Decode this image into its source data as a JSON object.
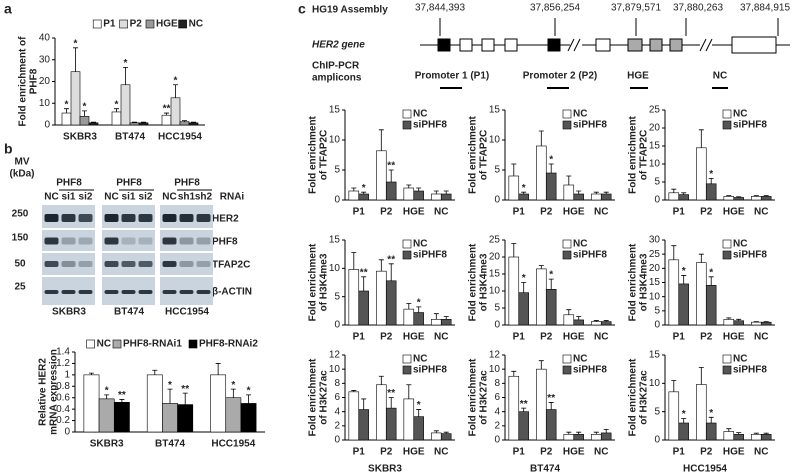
{
  "panel_labels": [
    "a",
    "b",
    "c"
  ],
  "blot": {
    "markers_title": [
      "MV",
      "(kDa)"
    ],
    "markers": [
      "250",
      "150",
      "50",
      "25"
    ],
    "groups": [
      "PHF8",
      "PHF8",
      "PHF8"
    ],
    "lanes": [
      [
        "NC",
        "si1",
        "si2"
      ],
      [
        "NC",
        "si1",
        "si2"
      ],
      [
        "NC",
        "sh1",
        "sh2"
      ]
    ],
    "treatment": "RNAi",
    "proteins": [
      "HER2",
      "PHF8",
      "TFAP2C",
      "β-ACTIN"
    ],
    "cell_lines": [
      "SKBR3",
      "BT474",
      "HCC1954"
    ]
  },
  "gene_map": {
    "assembly": "HG19 Assembly",
    "gene": "HER2 gene",
    "amplicons_label": [
      "ChIP-PCR",
      "amplicons"
    ],
    "coordinates": [
      "37,844,393",
      "37,856,254",
      "37,879,571",
      "37,880,263",
      "37,884,915"
    ],
    "amplicons": [
      "Promoter 1 (P1)",
      "Promoter 2 (P2)",
      "HGE",
      "NC"
    ]
  },
  "chart_data": [
    {
      "type": "bar",
      "ylabel": [
        "Fold enrichment of",
        "PHF8"
      ],
      "categories": [
        "SKBR3",
        "BT474",
        "HCC1954"
      ],
      "ylim": [
        0,
        40
      ],
      "yticks": [
        0,
        10,
        20,
        30,
        40
      ],
      "legend": "top",
      "series": [
        {
          "name": "P1",
          "color": "#ffffff",
          "values": [
            5.5,
            6,
            4.5
          ],
          "errors": [
            2,
            1.5,
            1
          ],
          "significance": [
            "*",
            "*",
            "**"
          ]
        },
        {
          "name": "P2",
          "color": "#dddddd",
          "values": [
            24.5,
            18.5,
            12.5
          ],
          "errors": [
            11,
            8,
            6
          ],
          "significance": [
            "*",
            "*",
            "*"
          ]
        },
        {
          "name": "HGE",
          "color": "#999999",
          "values": [
            4,
            1,
            1.5
          ],
          "errors": [
            2.5,
            0.3,
            0.5
          ],
          "significance": [
            "*",
            null,
            null
          ]
        },
        {
          "name": "NC",
          "color": "#222222",
          "values": [
            1,
            1,
            1
          ],
          "errors": [
            0.3,
            0.3,
            0.3
          ],
          "significance": [
            null,
            null,
            null
          ]
        }
      ]
    },
    {
      "type": "bar",
      "ylabel": [
        "Relative HER2",
        "mRNA expression"
      ],
      "categories": [
        "SKBR3",
        "BT474",
        "HCC1954"
      ],
      "ylim": [
        0,
        1.4
      ],
      "yticks": [
        0,
        0.2,
        0.4,
        0.6,
        0.8,
        1,
        1.2,
        1.4
      ],
      "legend": "top",
      "series": [
        {
          "name": "NC",
          "color": "#ffffff",
          "values": [
            1,
            1,
            1
          ],
          "errors": [
            0.03,
            0.08,
            0.2
          ],
          "significance": [
            null,
            null,
            null
          ]
        },
        {
          "name": "PHF8-RNAi1",
          "color": "#aaaaaa",
          "values": [
            0.58,
            0.5,
            0.6
          ],
          "errors": [
            0.07,
            0.25,
            0.15
          ],
          "significance": [
            "*",
            "*",
            "*"
          ]
        },
        {
          "name": "PHF8-RNAi2",
          "color": "#000000",
          "values": [
            0.52,
            0.48,
            0.5
          ],
          "errors": [
            0.05,
            0.2,
            0.15
          ],
          "significance": [
            "**",
            "**",
            "*"
          ]
        }
      ]
    },
    {
      "type": "bar",
      "ylabel": [
        "Fold enrichment",
        "of TFAP2C"
      ],
      "categories": [
        "P1",
        "P2",
        "HGE",
        "NC"
      ],
      "ylim": [
        0,
        15
      ],
      "yticks": [
        0,
        5,
        10,
        15
      ],
      "legend": "upper right",
      "series": [
        {
          "name": "NC",
          "color": "#ffffff",
          "values": [
            1.5,
            8.2,
            2,
            1
          ],
          "errors": [
            0.5,
            3.5,
            0.5,
            0.5
          ],
          "significance": [
            null,
            null,
            null,
            null
          ]
        },
        {
          "name": "siPHF8",
          "color": "#555555",
          "values": [
            1,
            3,
            1.5,
            1
          ],
          "errors": [
            0.3,
            2,
            0.5,
            0.5
          ],
          "significance": [
            "*",
            "**",
            null,
            null
          ]
        }
      ]
    },
    {
      "type": "bar",
      "ylabel": [
        "Fold enrichment",
        "of TFAP2C"
      ],
      "categories": [
        "P1",
        "P2",
        "HGE",
        "NC"
      ],
      "ylim": [
        0,
        15
      ],
      "yticks": [
        0,
        5,
        10,
        15
      ],
      "legend": "upper right",
      "series": [
        {
          "name": "NC",
          "color": "#ffffff",
          "values": [
            4,
            9,
            2.5,
            1
          ],
          "errors": [
            2,
            2.5,
            1.5,
            0.3
          ],
          "significance": [
            null,
            null,
            null,
            null
          ]
        },
        {
          "name": "siPHF8",
          "color": "#555555",
          "values": [
            1,
            4.5,
            1,
            1
          ],
          "errors": [
            0.3,
            1.5,
            0.5,
            0.3
          ],
          "significance": [
            "*",
            "*",
            null,
            null
          ]
        }
      ]
    },
    {
      "type": "bar",
      "ylabel": [
        "Fold enrichment",
        "of TFAP2C"
      ],
      "categories": [
        "P1",
        "P2",
        "HGE",
        "NC"
      ],
      "ylim": [
        0,
        25
      ],
      "yticks": [
        0,
        5,
        10,
        15,
        20,
        25
      ],
      "legend": "upper right",
      "series": [
        {
          "name": "NC",
          "color": "#ffffff",
          "values": [
            2,
            14.5,
            1,
            1
          ],
          "errors": [
            1,
            5,
            0.2,
            0.2
          ],
          "significance": [
            null,
            null,
            null,
            null
          ]
        },
        {
          "name": "siPHF8",
          "color": "#555555",
          "values": [
            1.5,
            4.5,
            0.7,
            1
          ],
          "errors": [
            0.5,
            1.5,
            0.2,
            0.2
          ],
          "significance": [
            null,
            "*",
            null,
            null
          ]
        }
      ]
    },
    {
      "type": "bar",
      "ylabel": [
        "Fold enrichment",
        "of H3K4me3"
      ],
      "categories": [
        "P1",
        "P2",
        "HGE",
        "NC"
      ],
      "ylim": [
        0,
        15
      ],
      "yticks": [
        0,
        5,
        10,
        15
      ],
      "legend": "upper right",
      "series": [
        {
          "name": "NC",
          "color": "#ffffff",
          "values": [
            9.8,
            9.5,
            2.8,
            1
          ],
          "errors": [
            3,
            2,
            1,
            1
          ],
          "significance": [
            null,
            null,
            null,
            null
          ]
        },
        {
          "name": "siPHF8",
          "color": "#555555",
          "values": [
            6,
            7.8,
            2.2,
            1
          ],
          "errors": [
            2.5,
            3,
            1,
            0.5
          ],
          "significance": [
            "**",
            "**",
            "*",
            null
          ]
        }
      ]
    },
    {
      "type": "bar",
      "ylabel": [
        "Fold enrichment",
        "of H3K4me3"
      ],
      "categories": [
        "P1",
        "P2",
        "HGE",
        "NC"
      ],
      "ylim": [
        0,
        25
      ],
      "yticks": [
        0,
        5,
        10,
        15,
        20,
        25
      ],
      "legend": "upper right",
      "series": [
        {
          "name": "NC",
          "color": "#ffffff",
          "values": [
            20,
            16.5,
            3,
            1
          ],
          "errors": [
            4,
            1,
            1.5,
            0.3
          ],
          "significance": [
            null,
            null,
            null,
            null
          ]
        },
        {
          "name": "siPHF8",
          "color": "#555555",
          "values": [
            9.5,
            10.5,
            1.5,
            1
          ],
          "errors": [
            3,
            3,
            1,
            0.3
          ],
          "significance": [
            "*",
            "*",
            null,
            null
          ]
        }
      ]
    },
    {
      "type": "bar",
      "ylabel": [
        "Fold enrichment",
        "of H3K4me3"
      ],
      "categories": [
        "P1",
        "P2",
        "HGE",
        "NC"
      ],
      "ylim": [
        0,
        30
      ],
      "yticks": [
        0,
        5,
        10,
        15,
        20,
        25,
        30
      ],
      "legend": "upper right",
      "series": [
        {
          "name": "NC",
          "color": "#ffffff",
          "values": [
            23,
            22,
            2,
            1
          ],
          "errors": [
            5,
            3,
            0.5,
            0.2
          ],
          "significance": [
            null,
            null,
            null,
            null
          ]
        },
        {
          "name": "siPHF8",
          "color": "#555555",
          "values": [
            14.5,
            14,
            1.5,
            1
          ],
          "errors": [
            3,
            3,
            0.5,
            0.2
          ],
          "significance": [
            "*",
            "*",
            null,
            null
          ]
        }
      ]
    },
    {
      "type": "bar",
      "ylabel": [
        "Fold enrichment",
        "of H3K27ac"
      ],
      "categories": [
        "P1",
        "P2",
        "HGE",
        "NC"
      ],
      "xlabel": "SKBR3",
      "ylim": [
        0,
        12
      ],
      "yticks": [
        0,
        2,
        4,
        6,
        8,
        10,
        12
      ],
      "legend": "upper right",
      "series": [
        {
          "name": "NC",
          "color": "#ffffff",
          "values": [
            6.8,
            7.8,
            5.8,
            1
          ],
          "errors": [
            0.2,
            1.2,
            2,
            0.3
          ],
          "significance": [
            null,
            null,
            null,
            null
          ]
        },
        {
          "name": "siPHF8",
          "color": "#555555",
          "values": [
            4.3,
            4.5,
            3.3,
            0.9
          ],
          "errors": [
            1.5,
            1.5,
            1,
            0.2
          ],
          "significance": [
            null,
            "**",
            "*",
            null
          ]
        }
      ]
    },
    {
      "type": "bar",
      "ylabel": [
        "Fold enrichment",
        "of H3K27ac"
      ],
      "categories": [
        "P1",
        "P2",
        "HGE",
        "NC"
      ],
      "xlabel": "BT474",
      "ylim": [
        0,
        12
      ],
      "yticks": [
        0,
        2,
        4,
        6,
        8,
        10,
        12
      ],
      "legend": "upper right",
      "series": [
        {
          "name": "NC",
          "color": "#ffffff",
          "values": [
            9,
            10,
            0.8,
            0.8
          ],
          "errors": [
            0.7,
            1.2,
            0.3,
            0.3
          ],
          "significance": [
            null,
            null,
            null,
            null
          ]
        },
        {
          "name": "siPHF8",
          "color": "#555555",
          "values": [
            4,
            4.3,
            0.8,
            1
          ],
          "errors": [
            0.5,
            1,
            0.3,
            0.5
          ],
          "significance": [
            "**",
            "**",
            null,
            null
          ]
        }
      ]
    },
    {
      "type": "bar",
      "ylabel": [
        "Fold enrichment",
        "of H3K27ac"
      ],
      "categories": [
        "P1",
        "P2",
        "HGE",
        "NC"
      ],
      "xlabel": "HCC1954",
      "ylim": [
        0,
        15
      ],
      "yticks": [
        0,
        5,
        10,
        15
      ],
      "legend": "upper right",
      "series": [
        {
          "name": "NC",
          "color": "#ffffff",
          "values": [
            8.5,
            9.8,
            1.5,
            1
          ],
          "errors": [
            2,
            3,
            0.5,
            0.2
          ],
          "significance": [
            null,
            null,
            null,
            null
          ]
        },
        {
          "name": "siPHF8",
          "color": "#555555",
          "values": [
            3,
            3,
            1,
            1
          ],
          "errors": [
            0.8,
            1,
            0.3,
            0.2
          ],
          "significance": [
            "*",
            "*",
            null,
            null
          ]
        }
      ]
    }
  ]
}
